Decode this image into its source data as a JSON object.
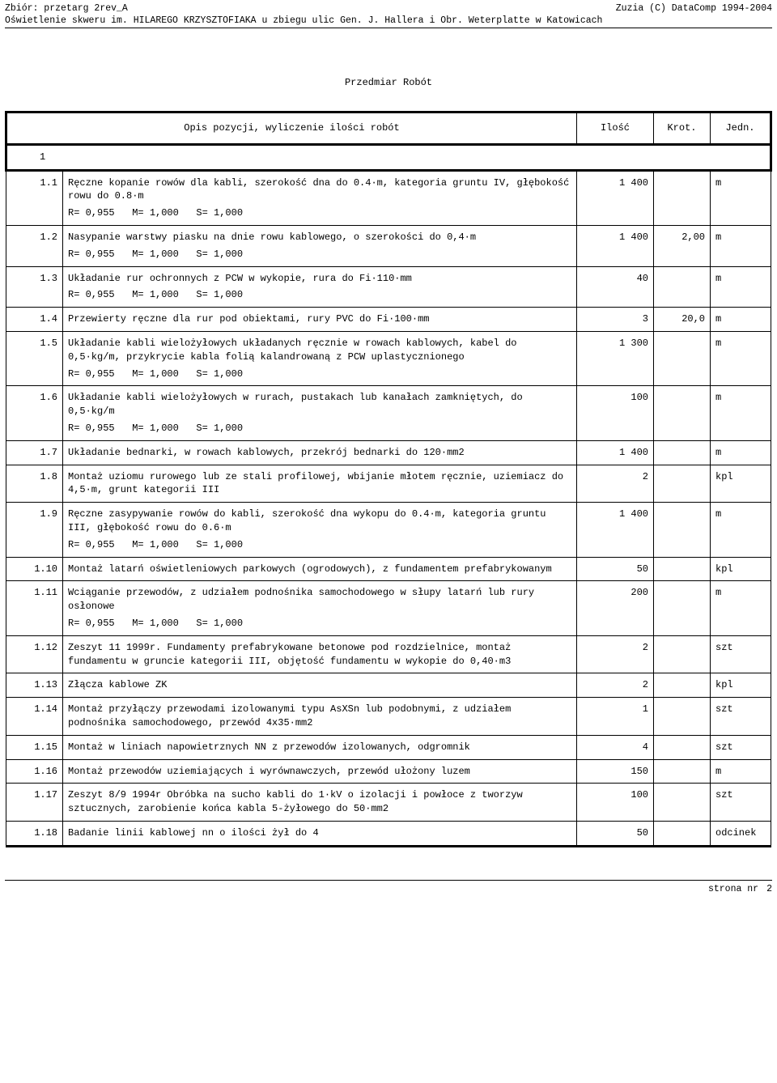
{
  "header": {
    "left": "Zbiór: przetarg 2rev_A",
    "right": "Zuzia (C) DataComp 1994-2004",
    "subtitle": "Oświetlenie skweru im. HILAREGO KRZYSZTOFIAKA u zbiegu ulic Gen. J. Hallera i Obr. Weterplatte w Katowicach"
  },
  "title": "Przedmiar Robót",
  "columns": {
    "desc": "Opis pozycji, wyliczenie ilości robót",
    "qty": "Ilość",
    "krot": "Krot.",
    "jedn": "Jedn."
  },
  "section": "1",
  "rows": [
    {
      "num": "1.1",
      "desc": "Ręczne kopanie rowów dla kabli, szerokość dna do 0.4·m, kategoria gruntu IV, głębokość rowu do 0.8·m",
      "calc": "R= 0,955   M= 1,000   S= 1,000",
      "qty": "1 400",
      "krot": "",
      "jedn": "m"
    },
    {
      "num": "1.2",
      "desc": "Nasypanie warstwy piasku na dnie rowu kablowego, o szerokości do 0,4·m",
      "calc": "R= 0,955   M= 1,000   S= 1,000",
      "qty": "1 400",
      "krot": "2,00",
      "jedn": "m"
    },
    {
      "num": "1.3",
      "desc": "Układanie rur ochronnych z PCW w wykopie, rura do Fi·110·mm",
      "calc": "R= 0,955   M= 1,000   S= 1,000",
      "qty": "40",
      "krot": "",
      "jedn": "m"
    },
    {
      "num": "1.4",
      "desc": "Przewierty ręczne dla rur pod obiektami, rury PVC do Fi·100·mm",
      "calc": "",
      "qty": "3",
      "krot": "20,0",
      "jedn": "m"
    },
    {
      "num": "1.5",
      "desc": "Układanie kabli wielożyłowych układanych ręcznie w rowach kablowych, kabel do 0,5·kg/m, przykrycie kabla folią kalandrowaną z PCW uplastycznionego",
      "calc": "R= 0,955   M= 1,000   S= 1,000",
      "qty": "1 300",
      "krot": "",
      "jedn": "m"
    },
    {
      "num": "1.6",
      "desc": "Układanie kabli wielożyłowych w rurach, pustakach lub kanałach zamkniętych, do 0,5·kg/m",
      "calc": "R= 0,955   M= 1,000   S= 1,000",
      "qty": "100",
      "krot": "",
      "jedn": "m"
    },
    {
      "num": "1.7",
      "desc": "Układanie bednarki, w rowach kablowych, przekrój bednarki do 120·mm2",
      "calc": "",
      "qty": "1 400",
      "krot": "",
      "jedn": "m"
    },
    {
      "num": "1.8",
      "desc": "Montaż uziomu rurowego lub ze stali profilowej, wbijanie młotem ręcznie, uziemiacz do 4,5·m, grunt kategorii III",
      "calc": "",
      "qty": "2",
      "krot": "",
      "jedn": "kpl"
    },
    {
      "num": "1.9",
      "desc": "Ręczne zasypywanie rowów do kabli, szerokość dna wykopu do 0.4·m, kategoria gruntu III, głębokość rowu do 0.6·m",
      "calc": "R= 0,955   M= 1,000   S= 1,000",
      "qty": "1 400",
      "krot": "",
      "jedn": "m"
    },
    {
      "num": "1.10",
      "desc": "Montaż latarń oświetleniowych parkowych (ogrodowych), z fundamentem prefabrykowanym",
      "calc": "",
      "qty": "50",
      "krot": "",
      "jedn": "kpl"
    },
    {
      "num": "1.11",
      "desc": "Wciąganie przewodów, z udziałem podnośnika samochodowego w słupy latarń lub rury osłonowe",
      "calc": "R= 0,955   M= 1,000   S= 1,000",
      "qty": "200",
      "krot": "",
      "jedn": "m"
    },
    {
      "num": "1.12",
      "desc": "Zeszyt 11 1999r. Fundamenty prefabrykowane betonowe pod rozdzielnice, montaż fundamentu w gruncie kategorii III, objętość fundamentu w wykopie do 0,40·m3",
      "calc": "",
      "qty": "2",
      "krot": "",
      "jedn": "szt"
    },
    {
      "num": "1.13",
      "desc": "Złącza kablowe ZK",
      "calc": "",
      "qty": "2",
      "krot": "",
      "jedn": "kpl"
    },
    {
      "num": "1.14",
      "desc": "Montaż przyłączy przewodami izolowanymi typu AsXSn lub podobnymi, z udziałem podnośnika samochodowego, przewód 4x35·mm2",
      "calc": "",
      "qty": "1",
      "krot": "",
      "jedn": "szt"
    },
    {
      "num": "1.15",
      "desc": "Montaż w liniach napowietrznych NN z przewodów izolowanych, odgromnik",
      "calc": "",
      "qty": "4",
      "krot": "",
      "jedn": "szt"
    },
    {
      "num": "1.16",
      "desc": "Montaż przewodów uziemiających i wyrównawczych, przewód ułożony luzem",
      "calc": "",
      "qty": "150",
      "krot": "",
      "jedn": "m"
    },
    {
      "num": "1.17",
      "desc": "Zeszyt 8/9 1994r Obróbka na sucho kabli do 1·kV o izolacji i powłoce z tworzyw sztucznych, zarobienie końca kabla 5-żyłowego do 50·mm2",
      "calc": "",
      "qty": "100",
      "krot": "",
      "jedn": "szt"
    },
    {
      "num": "1.18",
      "desc": "Badanie linii kablowej nn o ilości żył do 4",
      "calc": "",
      "qty": "50",
      "krot": "",
      "jedn": "odcinek"
    }
  ],
  "footer": {
    "label": "strona nr",
    "page": "2"
  }
}
